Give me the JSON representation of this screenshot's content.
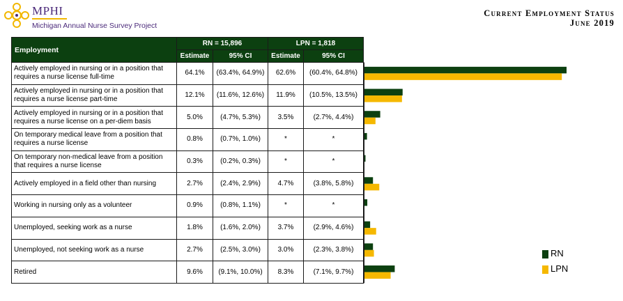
{
  "header": {
    "brand": "MPHI",
    "subtitle": "Michigan Annual Nurse Survey Project",
    "title_line1": "Current Employment Status",
    "title_line2": "June 2019"
  },
  "table": {
    "employment_header": "Employment",
    "rn_header": "RN =  15,896",
    "lpn_header": "LPN = 1,818",
    "estimate_label": "Estimate",
    "ci_label": "95% CI"
  },
  "rows": [
    {
      "label": "Actively employed in nursing or in a position that requires a nurse license full-time",
      "rn_est": "64.1%",
      "rn_ci": "(63.4%, 64.9%)",
      "lpn_est": "62.6%",
      "lpn_ci": "(60.4%, 64.8%)"
    },
    {
      "label": "Actively employed in nursing or in a position that requires a nurse license part-time",
      "rn_est": "12.1%",
      "rn_ci": "(11.6%, 12.6%)",
      "lpn_est": "11.9%",
      "lpn_ci": "(10.5%, 13.5%)"
    },
    {
      "label": "Actively employed in nursing or in a position that requires a nurse license on a per-diem basis",
      "rn_est": "5.0%",
      "rn_ci": "(4.7%, 5.3%)",
      "lpn_est": "3.5%",
      "lpn_ci": "(2.7%, 4.4%)"
    },
    {
      "label": "On temporary medical leave from a position that requires a nurse license",
      "rn_est": "0.8%",
      "rn_ci": "(0.7%, 1.0%)",
      "lpn_est": "*",
      "lpn_ci": "*"
    },
    {
      "label": "On temporary non-medical leave from a position that requires a nurse license",
      "rn_est": "0.3%",
      "rn_ci": "(0.2%, 0.3%)",
      "lpn_est": "*",
      "lpn_ci": "*"
    },
    {
      "label": "Actively employed in a field other than nursing",
      "rn_est": "2.7%",
      "rn_ci": "(2.4%, 2.9%)",
      "lpn_est": "4.7%",
      "lpn_ci": "(3.8%, 5.8%)"
    },
    {
      "label": "Working in nursing only as a volunteer",
      "rn_est": "0.9%",
      "rn_ci": "(0.8%, 1.1%)",
      "lpn_est": "*",
      "lpn_ci": "*"
    },
    {
      "label": "Unemployed, seeking work as a nurse",
      "rn_est": "1.8%",
      "rn_ci": "(1.6%, 2.0%)",
      "lpn_est": "3.7%",
      "lpn_ci": "(2.9%, 4.6%)"
    },
    {
      "label": "Unemployed, not seeking work as a nurse",
      "rn_est": "2.7%",
      "rn_ci": "(2.5%, 3.0%)",
      "lpn_est": "3.0%",
      "lpn_ci": "(2.3%, 3.8%)"
    },
    {
      "label": "Retired",
      "rn_est": "9.6%",
      "rn_ci": "(9.1%, 10.0%)",
      "lpn_est": "8.3%",
      "lpn_ci": "(7.1%, 9.7%)"
    }
  ],
  "chart_data": {
    "type": "bar",
    "orientation": "horizontal",
    "categories": [
      "Actively employed in nursing or in a position that requires a nurse license full-time",
      "Actively employed in nursing or in a position that requires a nurse license part-time",
      "Actively employed in nursing or in a position that requires a nurse license on a per-diem basis",
      "On temporary medical leave from a position that requires a nurse license",
      "On temporary non-medical leave from a position that requires a nurse license",
      "Actively employed in a field other than nursing",
      "Working in nursing only as a volunteer",
      "Unemployed, seeking work as a nurse",
      "Unemployed, not seeking work as a nurse",
      "Retired"
    ],
    "series": [
      {
        "name": "RN",
        "color": "#0c4010",
        "values": [
          64.1,
          12.1,
          5.0,
          0.8,
          0.3,
          2.7,
          0.9,
          1.8,
          2.7,
          9.6
        ]
      },
      {
        "name": "LPN",
        "color": "#f5b800",
        "values": [
          62.6,
          11.9,
          3.5,
          null,
          null,
          4.7,
          null,
          3.7,
          3.0,
          8.3
        ]
      }
    ],
    "xlim": [
      0,
      70
    ],
    "grid": false,
    "legend": "bottom-right"
  }
}
